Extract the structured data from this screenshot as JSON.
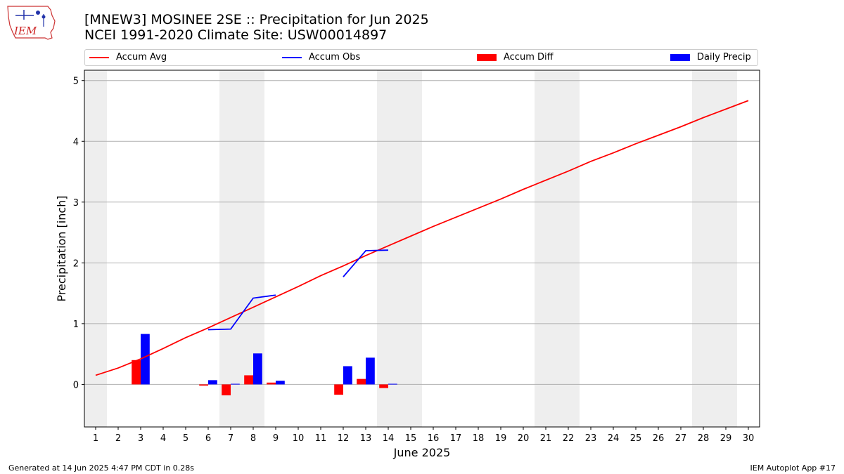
{
  "logo": {
    "text": "IEM"
  },
  "title_line1": "[MNEW3] MOSINEE 2SE :: Precipitation for Jun 2025",
  "title_line2": "NCEI 1991-2020 Climate Site: USW00014897",
  "footer_left": "Generated at 14 Jun 2025 4:47 PM CDT in 0.28s",
  "footer_right": "IEM Autoplot App #17",
  "colors": {
    "avg": "#ff0000",
    "obs": "#0000ff",
    "diff": "#ff0000",
    "daily": "#0000ff",
    "weekend": "#eeeeee",
    "grid": "#b0b0b0"
  },
  "chart_data": {
    "type": "bar",
    "xlabel": "June 2025",
    "ylabel": "Precipitation [inch]",
    "xlim": [
      0.5,
      30.5
    ],
    "ylim": [
      -0.7,
      5.17
    ],
    "yticks": [
      0,
      1,
      2,
      3,
      4,
      5
    ],
    "xticks": [
      1,
      2,
      3,
      4,
      5,
      6,
      7,
      8,
      9,
      10,
      11,
      12,
      13,
      14,
      15,
      16,
      17,
      18,
      19,
      20,
      21,
      22,
      23,
      24,
      25,
      26,
      27,
      28,
      29,
      30
    ],
    "grid": "horizontal",
    "legend_placement": "top",
    "shaded_weekend_ranges": [
      [
        0.5,
        1.5
      ],
      [
        6.5,
        8.5
      ],
      [
        13.5,
        15.5
      ],
      [
        20.5,
        22.5
      ],
      [
        27.5,
        29.5
      ]
    ],
    "series": [
      {
        "name": "Accum Avg",
        "kind": "line",
        "x": [
          1,
          2,
          3,
          4,
          5,
          6,
          7,
          8,
          9,
          10,
          11,
          12,
          13,
          14,
          15,
          16,
          17,
          18,
          19,
          20,
          21,
          22,
          23,
          24,
          25,
          26,
          27,
          28,
          29,
          30
        ],
        "values": [
          0.15,
          0.27,
          0.42,
          0.59,
          0.77,
          0.93,
          1.1,
          1.27,
          1.44,
          1.61,
          1.79,
          1.95,
          2.12,
          2.28,
          2.44,
          2.6,
          2.75,
          2.9,
          3.05,
          3.21,
          3.36,
          3.51,
          3.67,
          3.81,
          3.96,
          4.1,
          4.24,
          4.39,
          4.53,
          4.67
        ]
      },
      {
        "name": "Accum Obs",
        "kind": "line",
        "x": [
          6,
          7,
          8,
          9,
          null,
          12,
          13,
          14
        ],
        "values": [
          0.9,
          0.91,
          1.42,
          1.47,
          null,
          1.77,
          2.2,
          2.21
        ]
      },
      {
        "name": "Accum Diff",
        "kind": "bar",
        "x": [
          3,
          6,
          7,
          8,
          9,
          12,
          13,
          14
        ],
        "values": [
          0.4,
          -0.02,
          -0.18,
          0.15,
          0.03,
          -0.17,
          0.09,
          -0.06
        ]
      },
      {
        "name": "Daily Precip",
        "kind": "bar",
        "x": [
          3,
          6,
          7,
          8,
          9,
          12,
          13,
          14
        ],
        "values": [
          0.83,
          0.07,
          0.01,
          0.51,
          0.06,
          0.3,
          0.44,
          0.01
        ]
      }
    ]
  }
}
